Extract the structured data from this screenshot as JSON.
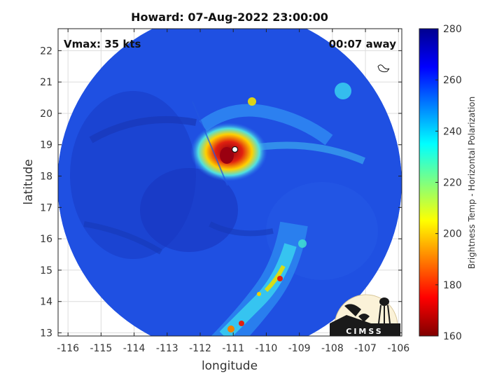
{
  "chart_data": {
    "type": "heatmap",
    "title": "Howard: 07-Aug-2022 23:00:00",
    "xlabel": "longitude",
    "ylabel": "latitude",
    "xlim": [
      -116.3,
      -105.9
    ],
    "ylim": [
      12.9,
      22.7
    ],
    "x_ticks": [
      -116,
      -115,
      -114,
      -113,
      -112,
      -111,
      -110,
      -109,
      -108,
      -107,
      -106
    ],
    "y_ticks": [
      13,
      14,
      15,
      16,
      17,
      18,
      19,
      20,
      21,
      22
    ],
    "grid": true,
    "annotations": {
      "vmax": "Vmax: 35 kts",
      "away": "00:07 away"
    },
    "storm_center": {
      "lon": -110.95,
      "lat": 18.85
    },
    "colorbar": {
      "label": "Brightness Temp - Horizontal Polarization",
      "min": 160,
      "max": 280,
      "ticks": [
        160,
        180,
        200,
        220,
        240,
        260,
        280
      ]
    }
  },
  "logo": {
    "text": "CIMSS"
  },
  "colors": {
    "background_field": "#1e4fe0",
    "rainband_cyan": "#38d0f0",
    "core_red": "#c00010"
  }
}
